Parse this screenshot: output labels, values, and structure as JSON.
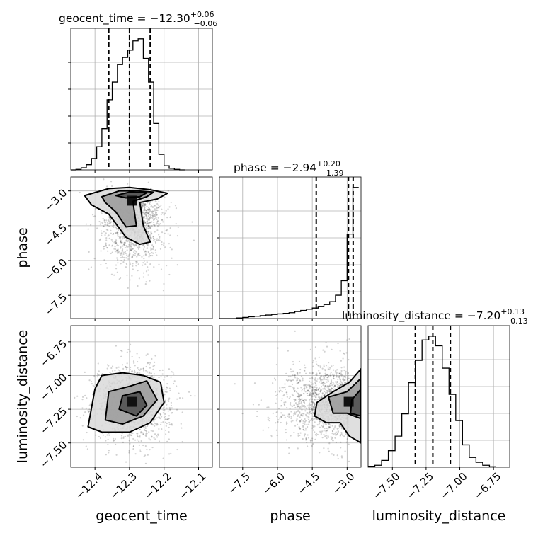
{
  "figure": {
    "parameters": [
      "geocent_time",
      "phase",
      "luminosity_distance"
    ],
    "axis_labels": {
      "geocent_time": "geocent_time",
      "phase": "phase",
      "luminosity_distance": "luminosity_distance"
    },
    "titles": {
      "geocent_time": {
        "name": "geocent_time",
        "median": "−12.30",
        "upper": "+0.06",
        "lower": "−0.06"
      },
      "phase": {
        "name": "phase",
        "median": "−2.94",
        "upper": "+0.20",
        "lower": "−1.39"
      },
      "luminosity_distance": {
        "name": "luminosity_distance",
        "median": "−7.20",
        "upper": "+0.13",
        "lower": "−0.13"
      }
    }
  },
  "chart_data": {
    "type": "corner",
    "grid": true,
    "ticks": {
      "geocent_time": [
        "−12.4",
        "−12.3",
        "−12.2",
        "−12.1"
      ],
      "phase": [
        "−7.5",
        "−6.0",
        "−4.5",
        "−3.0"
      ],
      "luminosity_distance": [
        "−7.50",
        "−7.25",
        "−7.00",
        "−6.75"
      ]
    },
    "ranges": {
      "geocent_time": [
        -12.47,
        -12.06
      ],
      "phase": [
        -8.5,
        -2.4
      ],
      "luminosity_distance": [
        -7.68,
        -6.63
      ]
    },
    "tick_values": {
      "geocent_time": [
        -12.4,
        -12.3,
        -12.2,
        -12.1
      ],
      "phase": [
        -7.5,
        -6.0,
        -4.5,
        -3.0
      ],
      "luminosity_distance": [
        -7.5,
        -7.25,
        -7.0,
        -6.75
      ]
    },
    "histograms": {
      "geocent_time": {
        "bin_edges": [
          -12.47,
          -12.455,
          -12.44,
          -12.425,
          -12.41,
          -12.395,
          -12.38,
          -12.365,
          -12.35,
          -12.335,
          -12.32,
          -12.305,
          -12.29,
          -12.275,
          -12.26,
          -12.245,
          -12.23,
          -12.215,
          -12.2,
          -12.185,
          -12.17,
          -12.155,
          -12.14
        ],
        "counts": [
          0,
          1,
          4,
          10,
          22,
          45,
          80,
          136,
          170,
          204,
          218,
          232,
          250,
          254,
          216,
          170,
          90,
          30,
          8,
          3,
          1,
          0
        ],
        "quantiles": [
          -12.36,
          -12.3,
          -12.24
        ]
      },
      "phase": {
        "bin_edges": [
          -8.5,
          -8.25,
          -8.0,
          -7.75,
          -7.5,
          -7.25,
          -7.0,
          -6.75,
          -6.5,
          -6.25,
          -6.0,
          -5.75,
          -5.5,
          -5.25,
          -5.0,
          -4.75,
          -4.5,
          -4.25,
          -4.0,
          -3.75,
          -3.5,
          -3.25,
          -3.0,
          -2.75,
          -2.5
        ],
        "counts": [
          0,
          0,
          0,
          2,
          4,
          6,
          8,
          10,
          12,
          14,
          16,
          18,
          20,
          24,
          28,
          32,
          36,
          42,
          48,
          58,
          80,
          130,
          290,
          450
        ],
        "quantiles": [
          -4.33,
          -2.94,
          -2.74
        ]
      },
      "luminosity_distance": {
        "bin_edges": [
          -7.68,
          -7.63,
          -7.58,
          -7.53,
          -7.48,
          -7.43,
          -7.38,
          -7.33,
          -7.28,
          -7.23,
          -7.18,
          -7.13,
          -7.08,
          -7.03,
          -6.98,
          -6.93,
          -6.88,
          -6.83,
          -6.78,
          -6.73
        ],
        "counts": [
          2,
          4,
          14,
          34,
          64,
          110,
          174,
          220,
          262,
          270,
          250,
          204,
          150,
          96,
          46,
          20,
          10,
          4,
          1
        ],
        "quantiles": [
          -7.33,
          -7.2,
          -7.07
        ]
      }
    },
    "pairs": [
      {
        "x": "geocent_time",
        "y": "phase",
        "center": [
          -12.29,
          -3.45
        ],
        "spread": [
          0.045,
          0.9
        ],
        "contours": [
          [
            [
              -12.43,
              -3.2
            ],
            [
              -12.36,
              -2.9
            ],
            [
              -12.3,
              -2.85
            ],
            [
              -12.24,
              -2.95
            ],
            [
              -12.19,
              -3.1
            ],
            [
              -12.22,
              -3.35
            ],
            [
              -12.27,
              -3.5
            ],
            [
              -12.26,
              -4.5
            ],
            [
              -12.24,
              -5.2
            ],
            [
              -12.27,
              -5.3
            ],
            [
              -12.31,
              -5.0
            ],
            [
              -12.36,
              -4.0
            ],
            [
              -12.41,
              -3.6
            ]
          ],
          [
            [
              -12.38,
              -3.25
            ],
            [
              -12.33,
              -3.0
            ],
            [
              -12.28,
              -3.0
            ],
            [
              -12.23,
              -3.05
            ],
            [
              -12.25,
              -3.25
            ],
            [
              -12.29,
              -3.45
            ],
            [
              -12.28,
              -4.5
            ],
            [
              -12.31,
              -4.55
            ],
            [
              -12.34,
              -3.9
            ],
            [
              -12.37,
              -3.5
            ]
          ],
          [
            [
              -12.34,
              -3.2
            ],
            [
              -12.3,
              -3.05
            ],
            [
              -12.25,
              -3.08
            ],
            [
              -12.27,
              -3.25
            ],
            [
              -12.31,
              -3.3
            ]
          ]
        ]
      },
      {
        "x": "geocent_time",
        "y": "luminosity_distance",
        "center": [
          -12.29,
          -7.2
        ],
        "spread": [
          0.055,
          0.14
        ],
        "contours": [
          [
            [
              -12.42,
              -7.38
            ],
            [
              -12.4,
              -7.1
            ],
            [
              -12.38,
              -7.0
            ],
            [
              -12.32,
              -6.98
            ],
            [
              -12.26,
              -7.0
            ],
            [
              -12.21,
              -7.05
            ],
            [
              -12.2,
              -7.2
            ],
            [
              -12.24,
              -7.35
            ],
            [
              -12.3,
              -7.42
            ],
            [
              -12.38,
              -7.42
            ]
          ],
          [
            [
              -12.37,
              -7.33
            ],
            [
              -12.36,
              -7.12
            ],
            [
              -12.3,
              -7.08
            ],
            [
              -12.25,
              -7.04
            ],
            [
              -12.22,
              -7.18
            ],
            [
              -12.26,
              -7.3
            ],
            [
              -12.32,
              -7.36
            ]
          ],
          [
            [
              -12.33,
              -7.25
            ],
            [
              -12.32,
              -7.15
            ],
            [
              -12.27,
              -7.12
            ],
            [
              -12.25,
              -7.22
            ],
            [
              -12.28,
              -7.3
            ]
          ]
        ]
      },
      {
        "x": "phase",
        "y": "luminosity_distance",
        "center": [
          -2.9,
          -7.2
        ],
        "spread": [
          0.9,
          0.14
        ],
        "contours": [
          [
            [
              -2.4,
              -6.95
            ],
            [
              -2.9,
              -7.05
            ],
            [
              -3.6,
              -7.12
            ],
            [
              -4.3,
              -7.2
            ],
            [
              -4.4,
              -7.3
            ],
            [
              -3.9,
              -7.35
            ],
            [
              -3.3,
              -7.35
            ],
            [
              -2.9,
              -7.45
            ],
            [
              -2.4,
              -7.5
            ]
          ],
          [
            [
              -2.4,
              -7.02
            ],
            [
              -3.0,
              -7.12
            ],
            [
              -3.8,
              -7.16
            ],
            [
              -3.6,
              -7.28
            ],
            [
              -3.0,
              -7.28
            ],
            [
              -2.4,
              -7.32
            ]
          ],
          [
            [
              -2.4,
              -7.1
            ],
            [
              -2.8,
              -7.18
            ],
            [
              -2.85,
              -7.28
            ],
            [
              -2.4,
              -7.3
            ]
          ]
        ]
      }
    ]
  }
}
